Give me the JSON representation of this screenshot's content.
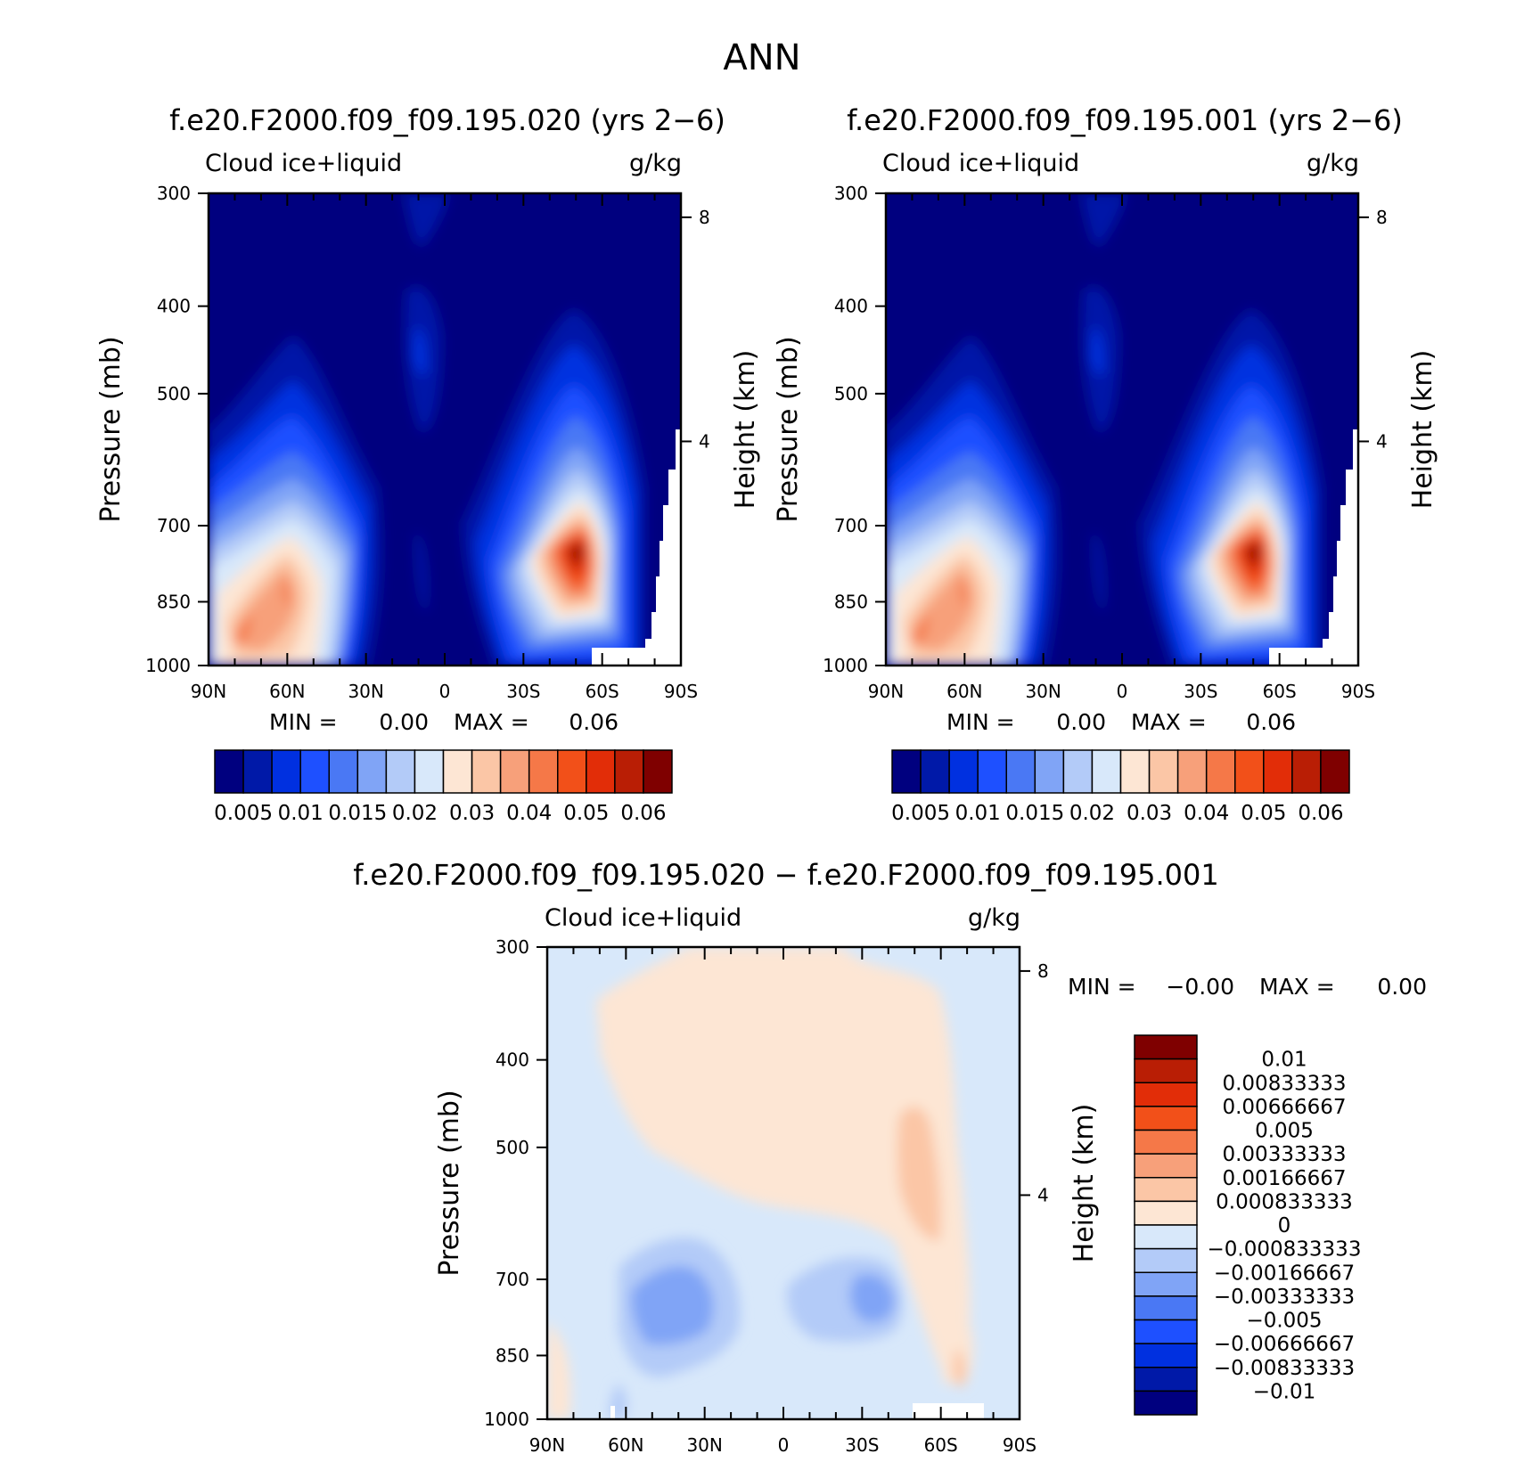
{
  "page": {
    "title": "ANN"
  },
  "panels": [
    {
      "id": "panel-1",
      "title": "f.e20.F2000.f09_f09.195.020 (yrs 2−6)",
      "left_label": "Cloud ice+liquid",
      "right_label": "g/kg",
      "y_label": "Pressure (mb)",
      "y2_label": "Height (km)",
      "x_ticks": [
        "90N",
        "60N",
        "30N",
        "0",
        "30S",
        "60S",
        "90S"
      ],
      "y_ticks": [
        "300",
        "400",
        "500",
        "700",
        "850",
        "1000"
      ],
      "y2_ticks": [
        "8",
        "4"
      ],
      "min_label": "MIN =",
      "min_value": "0.00",
      "max_label": "MAX =",
      "max_value": "0.06",
      "colorbar_labels": [
        "0.005",
        "0.01",
        "0.015",
        "0.02",
        "0.03",
        "0.04",
        "0.05",
        "0.06"
      ]
    },
    {
      "id": "panel-2",
      "title": "f.e20.F2000.f09_f09.195.001 (yrs 2−6)",
      "left_label": "Cloud ice+liquid",
      "right_label": "g/kg",
      "y_label": "Pressure (mb)",
      "y2_label": "Height (km)",
      "x_ticks": [
        "90N",
        "60N",
        "30N",
        "0",
        "30S",
        "60S",
        "90S"
      ],
      "y_ticks": [
        "300",
        "400",
        "500",
        "700",
        "850",
        "1000"
      ],
      "y2_ticks": [
        "8",
        "4"
      ],
      "min_label": "MIN =",
      "min_value": "0.00",
      "max_label": "MAX =",
      "max_value": "0.06",
      "colorbar_labels": [
        "0.005",
        "0.01",
        "0.015",
        "0.02",
        "0.03",
        "0.04",
        "0.05",
        "0.06"
      ]
    },
    {
      "id": "panel-3",
      "title": "f.e20.F2000.f09_f09.195.020 − f.e20.F2000.f09_f09.195.001",
      "left_label": "Cloud ice+liquid",
      "right_label": "g/kg",
      "y_label": "Pressure (mb)",
      "y2_label": "Height (km)",
      "x_ticks": [
        "90N",
        "60N",
        "30N",
        "0",
        "30S",
        "60S",
        "90S"
      ],
      "y_ticks": [
        "300",
        "400",
        "500",
        "700",
        "850",
        "1000"
      ],
      "y2_ticks": [
        "8",
        "4"
      ],
      "min_label": "MIN =",
      "min_value": "−0.00",
      "max_label": "MAX =",
      "max_value": "0.00",
      "colorbar_labels": [
        "0.01",
        "0.00833333",
        "0.00666667",
        "0.005",
        "0.00333333",
        "0.00166667",
        "0.000833333",
        "0",
        "−0.000833333",
        "−0.00166667",
        "−0.00333333",
        "−0.005",
        "−0.00666667",
        "−0.00833333",
        "−0.01"
      ]
    }
  ],
  "colors": {
    "abs_scale": [
      "#00007f",
      "#0019a8",
      "#0030e0",
      "#1e50ff",
      "#4a78f4",
      "#80a4f6",
      "#b3cbf8",
      "#d8e8fa",
      "#fde6d4",
      "#fbc6a6",
      "#f7a07a",
      "#f57848",
      "#f25019",
      "#e22d08",
      "#b91e05",
      "#7f0000"
    ],
    "diff_scale": [
      "#7f0000",
      "#b91e05",
      "#e22d08",
      "#f25019",
      "#f57848",
      "#f7a07a",
      "#fbc6a6",
      "#fde6d4",
      "#d8e8fa",
      "#b3cbf8",
      "#80a4f6",
      "#4a78f4",
      "#1e50ff",
      "#0030e0",
      "#0019a8",
      "#00007f"
    ]
  },
  "chart_data": [
    {
      "type": "heatmap",
      "title": "f.e20.F2000.f09_f09.195.020 (yrs 2−6)",
      "variable": "Cloud ice+liquid",
      "units": "g/kg",
      "xlabel": "",
      "ylabel": "Pressure (mb)",
      "y2label": "Height (km)",
      "x_range": [
        90,
        -90
      ],
      "y_range": [
        300,
        1000
      ],
      "y_scale": "log",
      "levels": [
        0.005,
        0.01,
        0.015,
        0.02,
        0.03,
        0.04,
        0.05,
        0.06
      ],
      "min": 0.0,
      "max": 0.06,
      "maxima": [
        {
          "lat": -56,
          "pressure_mb": 850,
          "value": 0.06
        },
        {
          "lat": 60,
          "pressure_mb": 870,
          "value": 0.04
        }
      ]
    },
    {
      "type": "heatmap",
      "title": "f.e20.F2000.f09_f09.195.001 (yrs 2−6)",
      "variable": "Cloud ice+liquid",
      "units": "g/kg",
      "xlabel": "",
      "ylabel": "Pressure (mb)",
      "y2label": "Height (km)",
      "x_range": [
        90,
        -90
      ],
      "y_range": [
        300,
        1000
      ],
      "y_scale": "log",
      "levels": [
        0.005,
        0.01,
        0.015,
        0.02,
        0.03,
        0.04,
        0.05,
        0.06
      ],
      "min": 0.0,
      "max": 0.06,
      "maxima": [
        {
          "lat": -56,
          "pressure_mb": 850,
          "value": 0.06
        },
        {
          "lat": 60,
          "pressure_mb": 870,
          "value": 0.04
        }
      ]
    },
    {
      "type": "heatmap",
      "title": "f.e20.F2000.f09_f09.195.020 − f.e20.F2000.f09_f09.195.001",
      "variable": "Cloud ice+liquid",
      "units": "g/kg",
      "xlabel": "",
      "ylabel": "Pressure (mb)",
      "y2label": "Height (km)",
      "x_range": [
        90,
        -90
      ],
      "y_range": [
        300,
        1000
      ],
      "y_scale": "log",
      "levels": [
        -0.01,
        -0.00833333,
        -0.00666667,
        -0.005,
        -0.00333333,
        -0.00166667,
        -0.000833333,
        0,
        0.000833333,
        0.00166667,
        0.00333333,
        0.005,
        0.00666667,
        0.00833333,
        0.01
      ],
      "min": -0.0,
      "max": 0.0
    }
  ]
}
